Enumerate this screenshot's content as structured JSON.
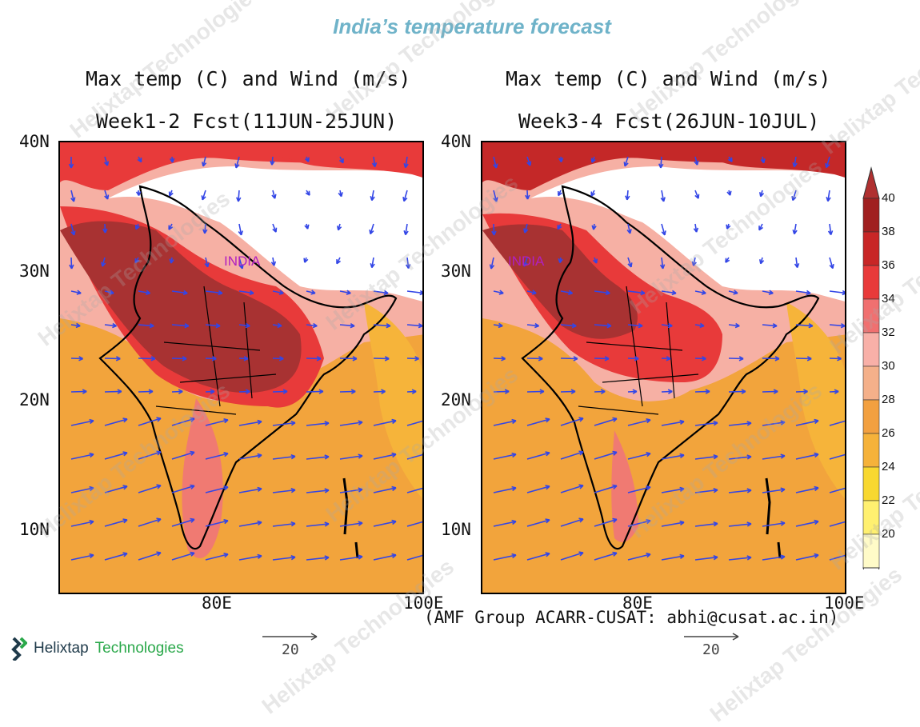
{
  "page_title": "India’s temperature forecast",
  "panels": [
    {
      "title_line1": "Max temp (C) and Wind (m/s)",
      "title_line2": "Week1-2 Fcst(11JUN-25JUN)",
      "region_label": "INDIA"
    },
    {
      "title_line1": "Max temp (C) and Wind (m/s)",
      "title_line2": "Week3-4 Fcst(26JUN-10JUL)",
      "region_label": "INDIA"
    }
  ],
  "y_ticks": [
    "40N",
    "30N",
    "20N",
    "10N"
  ],
  "x_ticks": [
    "80E",
    "100E"
  ],
  "credit": "(AMF Group ACARR-CUSAT: abhi@cusat.ac.in)",
  "wind_reference": {
    "value": "20",
    "units": "m/s"
  },
  "colorbar": {
    "labels": [
      "40",
      "38",
      "36",
      "34",
      "32",
      "30",
      "28",
      "26",
      "24",
      "22",
      "20"
    ],
    "colors": [
      "#a02020",
      "#c82626",
      "#e83a3a",
      "#f07070",
      "#f8b0a8",
      "#f4b08a",
      "#f2a040",
      "#f5b23a",
      "#f8d830",
      "#fff070",
      "#fffbc8"
    ],
    "top_color": "#b03030",
    "bottom_color": "#ffffff"
  },
  "watermark_text": "Helixtap Technologies",
  "brand": {
    "name_part1": "Helixtap",
    "name_part2": "Technologies",
    "color1": "#1f3a4a",
    "color2": "#2aa84a"
  },
  "field_colors": {
    "hot40": "#a83232",
    "hot38": "#c42828",
    "hot36": "#e83a3a",
    "hot34": "#f07a72",
    "warm32": "#f6b0a4",
    "warm30": "#f4b585",
    "warm28": "#f2a43c",
    "warm26": "#f6b43a",
    "cool24": "#f8d830",
    "cool22": "#fff27a",
    "wind": "#3346e6"
  }
}
